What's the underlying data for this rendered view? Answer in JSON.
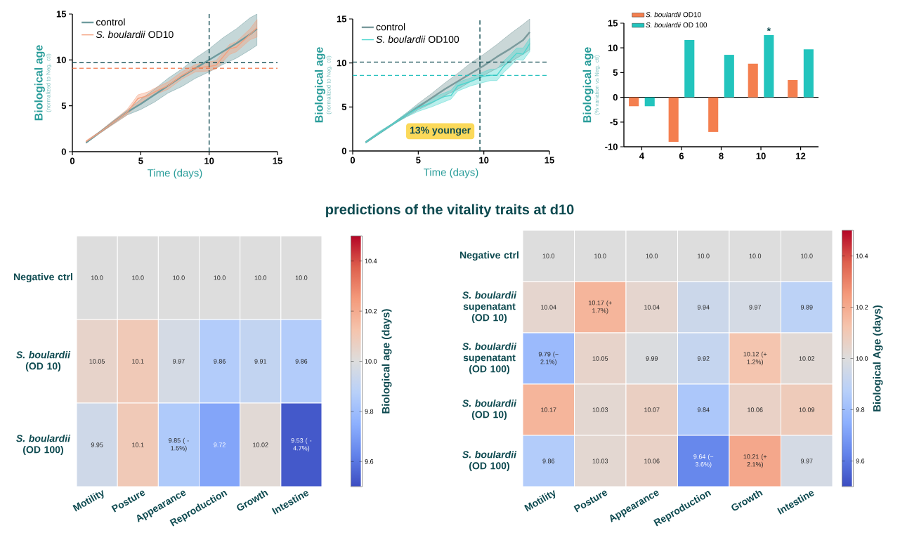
{
  "chart_data": [
    {
      "type": "line",
      "xlabel": "Time (days)",
      "ylabel": "Biological age",
      "annotations": [
        "(normalized to Neg. ctl)"
      ],
      "xlim": [
        0,
        15
      ],
      "ylim": [
        0,
        15
      ],
      "xticks": [
        0,
        5,
        10,
        15
      ],
      "yticks": [
        0,
        5,
        10,
        15
      ],
      "legend": "top left",
      "series": [
        {
          "name": "control",
          "color": "#6e9b9e",
          "x": [
            1,
            2,
            3,
            4,
            5,
            6,
            7,
            8,
            9,
            10,
            11,
            12,
            13,
            13.5
          ],
          "values": [
            1,
            2.1,
            3.2,
            4.3,
            5.2,
            6.2,
            7.2,
            8.2,
            9.1,
            10.0,
            10.9,
            11.8,
            12.8,
            13.4
          ],
          "lower": [
            0.9,
            2.0,
            3.0,
            4.0,
            4.6,
            5.4,
            6.4,
            7.1,
            8.0,
            8.7,
            9.5,
            10.2,
            11.1,
            11.6
          ],
          "upper": [
            1.1,
            2.2,
            3.4,
            4.5,
            5.7,
            6.8,
            8.0,
            9.0,
            10.2,
            11.2,
            12.4,
            13.4,
            14.6,
            15
          ]
        },
        {
          "name": "*S. boulardii*  OD10",
          "color": "#f4a07e",
          "x": [
            1,
            2,
            3,
            4,
            4.8,
            5.5,
            6,
            7,
            8,
            9,
            10,
            10.5,
            11,
            11.5,
            12,
            13,
            13.5
          ],
          "values": [
            1.1,
            2.1,
            3.2,
            4.3,
            5.8,
            6.1,
            6.5,
            7.2,
            8.3,
            9.1,
            9.3,
            9.4,
            10.3,
            11.2,
            11.4,
            12.8,
            13.5
          ],
          "lower": [
            1.0,
            2.0,
            3.0,
            4.0,
            5.2,
            5.7,
            6.2,
            6.8,
            7.9,
            8.7,
            8.8,
            9.0,
            9.8,
            10.6,
            10.9,
            12.2,
            12.5
          ],
          "upper": [
            1.2,
            2.2,
            3.4,
            4.6,
            6.2,
            6.5,
            6.9,
            7.6,
            8.7,
            9.5,
            9.8,
            9.9,
            10.8,
            11.7,
            12.0,
            13.4,
            14.4
          ]
        }
      ],
      "ref_lines": [
        {
          "axis": "y",
          "value": 9.7,
          "color": "#0e4a50",
          "line_style": "dashed"
        },
        {
          "axis": "y",
          "value": 9.1,
          "color": "#f26b3a",
          "line_style": "dashed"
        },
        {
          "axis": "x",
          "value": 10,
          "color": "#0e4a50",
          "line_style": "dashed"
        }
      ]
    },
    {
      "type": "line",
      "xlabel": "Time (days)",
      "ylabel": "Biological age",
      "annotations": [
        "(normalized to Neg. ctl)",
        "13% younger"
      ],
      "xlim": [
        0,
        15
      ],
      "ylim": [
        0,
        15
      ],
      "xticks": [
        0,
        5,
        10,
        15
      ],
      "yticks": [
        0,
        5,
        10,
        15
      ],
      "legend": "top left",
      "series": [
        {
          "name": "control",
          "color": "#7a9a9c",
          "x": [
            1,
            2,
            3,
            4,
            5,
            6,
            7,
            8,
            9,
            10,
            11,
            12,
            13,
            13.5
          ],
          "values": [
            1,
            2.0,
            3.0,
            4.0,
            5.0,
            6.0,
            7.0,
            7.9,
            8.8,
            9.7,
            10.7,
            11.6,
            12.6,
            13.5
          ],
          "lower": [
            0.9,
            2.0,
            3.0,
            3.8,
            4.7,
            5.4,
            6.3,
            7.0,
            7.9,
            8.6,
            9.4,
            10.1,
            11.0,
            11.5
          ],
          "upper": [
            1.1,
            2.1,
            3.1,
            4.2,
            5.4,
            6.5,
            7.7,
            8.8,
            10.0,
            11.0,
            12.1,
            13.3,
            14.4,
            15
          ]
        },
        {
          "name": "*S. boulardii*  OD100",
          "color": "#4fd6cf",
          "x": [
            1,
            2,
            3,
            4,
            5,
            6,
            7,
            7.5,
            8,
            9,
            10,
            10.5,
            11,
            11.5,
            12,
            12.5,
            13,
            13.5
          ],
          "values": [
            1,
            2.0,
            3.0,
            4.0,
            4.9,
            5.5,
            6.2,
            6.3,
            7.4,
            7.9,
            8.5,
            8.6,
            8.6,
            9.6,
            10.3,
            11.1,
            11.0,
            12.2
          ],
          "lower": [
            0.9,
            1.9,
            2.9,
            3.8,
            4.5,
            5.0,
            5.6,
            5.9,
            6.8,
            7.4,
            7.8,
            8.0,
            8.0,
            8.9,
            9.6,
            10.4,
            10.3,
            11.3
          ],
          "upper": [
            1.1,
            2.2,
            3.1,
            4.2,
            5.2,
            6.0,
            6.6,
            6.9,
            7.8,
            8.3,
            9.0,
            9.3,
            9.3,
            10.2,
            10.9,
            11.7,
            11.7,
            12.8
          ]
        }
      ],
      "ref_lines": [
        {
          "axis": "y",
          "value": 10.1,
          "color": "#0e4a50",
          "line_style": "dashed"
        },
        {
          "axis": "y",
          "value": 8.6,
          "color": "#2cc3c0",
          "line_style": "dashed"
        },
        {
          "axis": "x",
          "value": 9.7,
          "color": "#0e4a50",
          "line_style": "dashed"
        }
      ]
    },
    {
      "type": "bar",
      "ylabel": "Biological age",
      "annotations": [
        "(% variation vs Neg. ctl)",
        {
          "text": "*",
          "x": "10",
          "y": 12.6
        }
      ],
      "categories": [
        "4",
        "6",
        "8",
        "10",
        "12"
      ],
      "ylim": [
        -10,
        15
      ],
      "yticks": [
        -10,
        -5,
        0,
        5,
        10,
        15
      ],
      "legend": "top left",
      "series": [
        {
          "name": "*S. boulardii* OD10",
          "color": "#f47f4f",
          "values": [
            -1.8,
            -9,
            -7,
            6.8,
            3.5
          ]
        },
        {
          "name": "*S. boulardii* OD 100",
          "color": "#22c4bd",
          "values": [
            -1.8,
            11.6,
            8.6,
            12.6,
            9.7
          ]
        }
      ]
    },
    {
      "type": "other",
      "title": "predictions of the vitality traits at d10"
    },
    {
      "type": "heatmap",
      "categories": [
        "Motility",
        "Posture",
        "Appearance",
        "Reproduction",
        "Growth",
        "Intestine"
      ],
      "y_categories": [
        "Negative ctrl",
        "*S. boulardii* (OD 10)",
        "*S. boulardii* (OD 100)"
      ],
      "cells": [
        [
          10.0,
          10.0,
          10.0,
          10.0,
          10.0,
          10.0
        ],
        [
          10.05,
          10.1,
          9.97,
          9.86,
          9.91,
          9.86
        ],
        [
          9.95,
          10.1,
          9.85,
          9.72,
          10.02,
          9.53
        ]
      ],
      "cell_labels": [
        [
          "10.0",
          "10.0",
          "10.0",
          "10.0",
          "10.0",
          "10.0"
        ],
        [
          "10.05",
          "10.1",
          "9.97",
          "9.86",
          "9.91",
          "9.86"
        ],
        [
          "9.95",
          "10.1",
          "9.85 ( - 1.5%)",
          "9.72",
          "10.02",
          "9.53 ( - 4.7%)"
        ]
      ],
      "clim": [
        9.5,
        10.5
      ],
      "cticks": [
        9.6,
        9.8,
        {
          "value": 10,
          "label": "10.0"
        },
        10.2,
        10.4
      ],
      "clabel": "Biological age (days)"
    },
    {
      "type": "heatmap",
      "categories": [
        "Motility",
        "Posture",
        "Appearance",
        "Reproduction",
        "Growth",
        "Intestine"
      ],
      "y_categories": [
        "Negative ctrl",
        "*S. boulardii* supenatant (OD 10)",
        "*S. boulardii* supenatant (OD 100)",
        "*S. boulardii* (OD 10)",
        "*S. boulardii* (OD 100)"
      ],
      "cells": [
        [
          10.0,
          10.0,
          10.0,
          10.0,
          10.0,
          10.0
        ],
        [
          10.04,
          10.17,
          10.04,
          9.94,
          9.97,
          9.89
        ],
        [
          9.79,
          10.05,
          9.99,
          9.92,
          10.12,
          10.02
        ],
        [
          10.17,
          10.03,
          10.07,
          9.84,
          10.06,
          10.09
        ],
        [
          9.86,
          10.03,
          10.06,
          9.64,
          10.21,
          9.97
        ]
      ],
      "cell_labels": [
        [
          "10.0",
          "10.0",
          "10.0",
          "10.0",
          "10.0",
          "10.0"
        ],
        [
          "10.04",
          "10.17 (+ 1.7%)",
          "10.04",
          "9.94",
          "9.97",
          "9.89"
        ],
        [
          "9.79 (− 2.1%)",
          "10.05",
          "9.99",
          "9.92",
          "10.12 (+ 1.2%)",
          "10.02"
        ],
        [
          "10.17",
          "10.03",
          "10.07",
          "9.84",
          "10.06",
          "10.09"
        ],
        [
          "9.86",
          "10.03",
          "10.06",
          "9.64 (− 3.6%)",
          "10.21 (+ 2.1%)",
          "9.97"
        ]
      ],
      "clim": [
        9.5,
        10.5
      ],
      "cticks": [
        9.6,
        9.8,
        {
          "value": 10,
          "label": "10.0"
        },
        10.2,
        10.4
      ],
      "clabel": "Biological Age (days)"
    }
  ]
}
